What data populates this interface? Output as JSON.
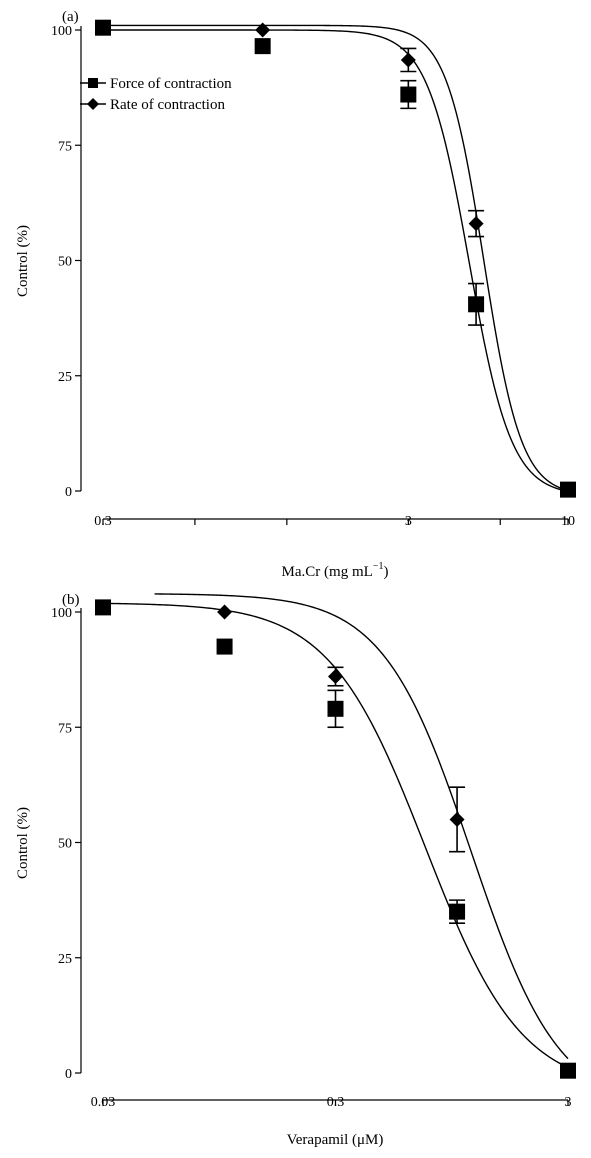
{
  "chart_data": [
    {
      "panel_label": "(a)",
      "type": "scatter",
      "xscale": "log",
      "xlim": [
        0.3,
        10
      ],
      "ylim": [
        0,
        100
      ],
      "xlabel_parts": [
        "Ma.Cr (mg mL",
        "−",
        "1",
        ")"
      ],
      "ylabel": "Control (%)",
      "x_ticks": [
        {
          "value": 0.3,
          "label": "0.3"
        },
        {
          "value": 0.6
        },
        {
          "value": 1.2
        },
        {
          "value": 3,
          "label": "3"
        },
        {
          "value": 6
        },
        {
          "value": 10,
          "label": "10"
        }
      ],
      "y_ticks": [
        {
          "value": 0,
          "label": "0"
        },
        {
          "value": 25,
          "label": "25"
        },
        {
          "value": 50,
          "label": "50"
        },
        {
          "value": 75,
          "label": "75"
        },
        {
          "value": 100,
          "label": "100"
        }
      ],
      "legend": {
        "position": "top-left"
      },
      "series": [
        {
          "name": "Force of contraction",
          "marker": "square",
          "points": [
            {
              "x": 0.3,
              "y": 100.5
            },
            {
              "x": 1.0,
              "y": 96.5
            },
            {
              "x": 3.0,
              "y": 86,
              "err": 3
            },
            {
              "x": 5.0,
              "y": 40.5,
              "err": 4.5
            },
            {
              "x": 10,
              "y": 0.3
            }
          ],
          "fit": {
            "top": 100,
            "bottom": -1,
            "ec50": 4.75,
            "hill": 6.3,
            "xstart": 0.3,
            "xend": 10
          }
        },
        {
          "name": "Rate of contraction",
          "marker": "diamond",
          "points": [
            {
              "x": 0.3,
              "y": 100.5
            },
            {
              "x": 1.0,
              "y": 100
            },
            {
              "x": 3.0,
              "y": 93.5,
              "err": 2.5
            },
            {
              "x": 5.0,
              "y": 58,
              "err": 2.8
            },
            {
              "x": 10,
              "y": 0.3
            }
          ],
          "fit": {
            "top": 101,
            "bottom": -1,
            "ec50": 5.3,
            "hill": 7.1,
            "xstart": 0.3,
            "xend": 10
          }
        }
      ]
    },
    {
      "panel_label": "(b)",
      "type": "scatter",
      "xscale": "log",
      "xlim": [
        0.03,
        3
      ],
      "ylim": [
        0,
        100
      ],
      "xlabel_parts": [
        "Verapamil (μM)"
      ],
      "ylabel": "Control (%)",
      "x_ticks": [
        {
          "value": 0.03,
          "label": "0.03"
        },
        {
          "value": 0.3,
          "label": "0.3"
        },
        {
          "value": 3,
          "label": "3"
        }
      ],
      "y_ticks": [
        {
          "value": 0,
          "label": "0"
        },
        {
          "value": 25,
          "label": "25"
        },
        {
          "value": 50,
          "label": "50"
        },
        {
          "value": 75,
          "label": "75"
        },
        {
          "value": 100,
          "label": "100"
        }
      ],
      "series": [
        {
          "marker": "square",
          "points": [
            {
              "x": 0.03,
              "y": 101
            },
            {
              "x": 0.1,
              "y": 92.5
            },
            {
              "x": 0.3,
              "y": 79,
              "err": 4
            },
            {
              "x": 1.0,
              "y": 35,
              "err": 2.5
            },
            {
              "x": 3.0,
              "y": 0.5
            }
          ],
          "fit": {
            "top": 102,
            "bottom": -4,
            "ec50": 0.73,
            "hill": 2.1,
            "xstart": 0.03,
            "xend": 3
          }
        },
        {
          "marker": "diamond",
          "points": [
            {
              "x": 0.1,
              "y": 100
            },
            {
              "x": 0.3,
              "y": 86,
              "err": 2
            },
            {
              "x": 1.0,
              "y": 55,
              "err": 7
            },
            {
              "x": 3.0,
              "y": 0.5
            }
          ],
          "fit": {
            "top": 104,
            "bottom": -8,
            "ec50": 1.15,
            "hill": 2.3,
            "xstart": 0.05,
            "xend": 3
          }
        }
      ]
    }
  ]
}
